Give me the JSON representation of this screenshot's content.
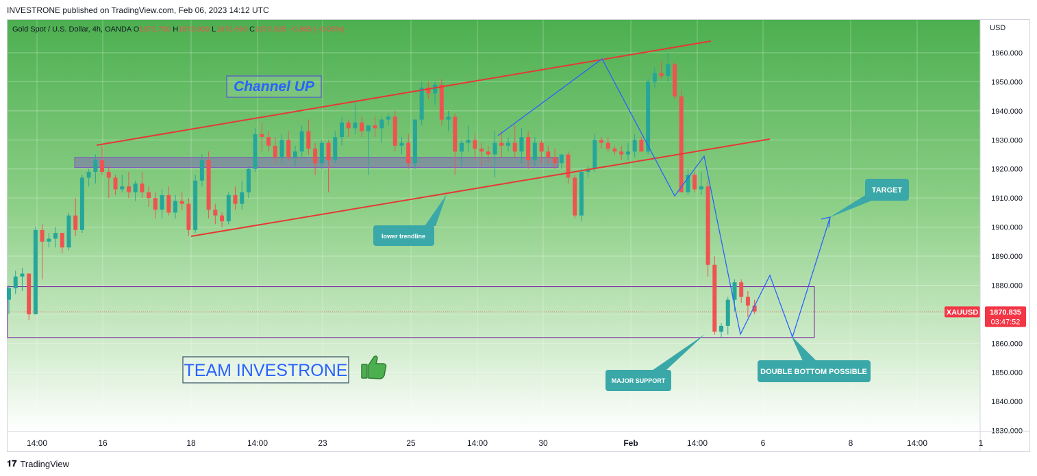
{
  "header": {
    "published": "INVESTRONE published on TradingView.com, Feb 06, 2023 14:12 UTC"
  },
  "legend": {
    "symbol": "Gold Spot / U.S. Dollar, 4h, OANDA",
    "o_label": "O",
    "o_value": "1871.700",
    "h_label": "H",
    "h_value": "1873.900",
    "l_label": "L",
    "l_value": "1870.660",
    "c_label": "C",
    "c_value": "1870.835",
    "change": "−0.865 (−0.05%)"
  },
  "price_axis": {
    "currency": "USD",
    "labels": [
      "1960.000",
      "1950.000",
      "1940.000",
      "1930.000",
      "1920.000",
      "1910.000",
      "1900.000",
      "1890.000",
      "1880.000",
      "1870.000",
      "1860.000",
      "1850.000",
      "1840.000",
      "1830.000"
    ]
  },
  "time_axis": {
    "labels": [
      "14:00",
      "16",
      "18",
      "14:00",
      "23",
      "25",
      "14:00",
      "30",
      "Feb",
      "14:00",
      "6",
      "8",
      "14:00",
      "1"
    ]
  },
  "last_price": {
    "symbol": "XAUUSD",
    "price": "1870.835",
    "countdown": "03:47:52"
  },
  "annotations": {
    "channel": "Channel UP",
    "lower_trendline": "lower trendline",
    "target": "TARGET",
    "major_support": "MAJOR SUPPORT",
    "double_bottom": "DOUBLE BOTTOM POSSIBLE",
    "team": "TEAM INVESTRONE"
  },
  "footer": {
    "brand": "TradingView"
  },
  "colors": {
    "up": "#26a69a",
    "down": "#ef5350",
    "bg_top": "#4caf50",
    "bg_bottom": "#ffffff",
    "channel": "#e53935",
    "path": "#2962ff",
    "callout": "#3aa8a8",
    "box": "#7b1fa2",
    "price_tag": "#f23645"
  },
  "chart_data": {
    "type": "candlestick",
    "title": "Gold Spot / U.S. Dollar, 4h, OANDA",
    "ylabel": "USD",
    "ylim": [
      1828,
      1968
    ],
    "candles": [
      [
        1875,
        1880,
        1870,
        1879
      ],
      [
        1879,
        1885,
        1877,
        1883
      ],
      [
        1883,
        1886,
        1878,
        1884
      ],
      [
        1884,
        1884,
        1868,
        1870
      ],
      [
        1870,
        1900,
        1870,
        1899
      ],
      [
        1899,
        1901,
        1882,
        1895
      ],
      [
        1895,
        1898,
        1893,
        1896
      ],
      [
        1896,
        1900,
        1893,
        1898
      ],
      [
        1898,
        1898,
        1891,
        1893
      ],
      [
        1893,
        1905,
        1892,
        1904
      ],
      [
        1904,
        1910,
        1897,
        1899
      ],
      [
        1899,
        1918,
        1898,
        1917
      ],
      [
        1917,
        1920,
        1914,
        1919
      ],
      [
        1919,
        1925,
        1915,
        1923
      ],
      [
        1923,
        1928,
        1918,
        1919
      ],
      [
        1919,
        1921,
        1910,
        1917
      ],
      [
        1917,
        1918,
        1911,
        1913
      ],
      [
        1913,
        1918,
        1912,
        1914
      ],
      [
        1914,
        1919,
        1910,
        1912
      ],
      [
        1912,
        1916,
        1909,
        1915
      ],
      [
        1915,
        1919,
        1910,
        1912
      ],
      [
        1912,
        1914,
        1907,
        1910
      ],
      [
        1910,
        1912,
        1903,
        1906
      ],
      [
        1906,
        1913,
        1903,
        1911
      ],
      [
        1911,
        1914,
        1904,
        1905
      ],
      [
        1905,
        1911,
        1903,
        1909
      ],
      [
        1909,
        1912,
        1906,
        1908
      ],
      [
        1908,
        1910,
        1897,
        1899
      ],
      [
        1899,
        1918,
        1898,
        1916
      ],
      [
        1916,
        1925,
        1914,
        1923
      ],
      [
        1923,
        1926,
        1903,
        1906
      ],
      [
        1906,
        1908,
        1901,
        1904
      ],
      [
        1904,
        1905,
        1900,
        1902
      ],
      [
        1902,
        1912,
        1901,
        1911
      ],
      [
        1911,
        1914,
        1906,
        1908
      ],
      [
        1908,
        1916,
        1906,
        1912
      ],
      [
        1912,
        1921,
        1910,
        1920
      ],
      [
        1920,
        1934,
        1919,
        1932
      ],
      [
        1932,
        1936,
        1926,
        1931
      ],
      [
        1931,
        1933,
        1926,
        1928
      ],
      [
        1928,
        1931,
        1922,
        1924
      ],
      [
        1924,
        1932,
        1922,
        1930
      ],
      [
        1930,
        1933,
        1923,
        1924
      ],
      [
        1924,
        1928,
        1921,
        1926
      ],
      [
        1926,
        1935,
        1924,
        1933
      ],
      [
        1933,
        1937,
        1925,
        1927
      ],
      [
        1927,
        1929,
        1918,
        1922
      ],
      [
        1922,
        1930,
        1920,
        1929
      ],
      [
        1929,
        1930,
        1912,
        1923
      ],
      [
        1923,
        1933,
        1922,
        1931
      ],
      [
        1931,
        1938,
        1928,
        1936
      ],
      [
        1936,
        1937,
        1931,
        1934
      ],
      [
        1934,
        1943,
        1932,
        1936
      ],
      [
        1936,
        1938,
        1931,
        1933
      ],
      [
        1933,
        1935,
        1918,
        1935
      ],
      [
        1935,
        1938,
        1931,
        1934
      ],
      [
        1934,
        1938,
        1929,
        1937
      ],
      [
        1937,
        1939,
        1935,
        1938
      ],
      [
        1938,
        1940,
        1926,
        1928
      ],
      [
        1928,
        1931,
        1925,
        1929
      ],
      [
        1929,
        1932,
        1920,
        1922
      ],
      [
        1922,
        1937,
        1920,
        1937
      ],
      [
        1937,
        1950,
        1935,
        1948
      ],
      [
        1948,
        1950,
        1944,
        1946
      ],
      [
        1946,
        1950,
        1942,
        1949
      ],
      [
        1949,
        1951,
        1935,
        1937
      ],
      [
        1937,
        1940,
        1933,
        1938
      ],
      [
        1938,
        1939,
        1918,
        1926
      ],
      [
        1926,
        1930,
        1921,
        1929
      ],
      [
        1929,
        1935,
        1926,
        1930
      ],
      [
        1930,
        1932,
        1923,
        1927
      ],
      [
        1927,
        1929,
        1921,
        1926
      ],
      [
        1926,
        1928,
        1922,
        1925
      ],
      [
        1925,
        1933,
        1917,
        1929
      ],
      [
        1929,
        1933,
        1924,
        1928
      ],
      [
        1928,
        1931,
        1926,
        1929
      ],
      [
        1929,
        1935,
        1924,
        1926
      ],
      [
        1926,
        1934,
        1922,
        1931
      ],
      [
        1931,
        1933,
        1920,
        1923
      ],
      [
        1923,
        1931,
        1921,
        1929
      ],
      [
        1929,
        1930,
        1922,
        1926
      ],
      [
        1926,
        1928,
        1922,
        1924
      ],
      [
        1924,
        1927,
        1920,
        1922
      ],
      [
        1922,
        1925,
        1920,
        1925
      ],
      [
        1925,
        1926,
        1915,
        1917
      ],
      [
        1917,
        1918,
        1903,
        1904
      ],
      [
        1904,
        1920,
        1902,
        1919
      ],
      [
        1919,
        1921,
        1917,
        1920
      ],
      [
        1920,
        1932,
        1919,
        1930
      ],
      [
        1930,
        1931,
        1927,
        1929
      ],
      [
        1929,
        1931,
        1926,
        1927
      ],
      [
        1927,
        1928,
        1925,
        1926
      ],
      [
        1926,
        1928,
        1923,
        1925
      ],
      [
        1925,
        1929,
        1923,
        1926
      ],
      [
        1926,
        1932,
        1924,
        1930
      ],
      [
        1930,
        1931,
        1926,
        1926
      ],
      [
        1926,
        1951,
        1925,
        1950
      ],
      [
        1950,
        1955,
        1948,
        1953
      ],
      [
        1953,
        1957,
        1951,
        1952
      ],
      [
        1952,
        1960,
        1950,
        1956
      ],
      [
        1956,
        1957,
        1944,
        1945
      ],
      [
        1945,
        1947,
        1912,
        1912
      ],
      [
        1912,
        1920,
        1911,
        1918
      ],
      [
        1918,
        1919,
        1912,
        1913
      ],
      [
        1913,
        1919,
        1911,
        1914
      ],
      [
        1914,
        1916,
        1883,
        1887
      ],
      [
        1887,
        1890,
        1863,
        1864
      ],
      [
        1864,
        1867,
        1862,
        1866
      ],
      [
        1866,
        1876,
        1863,
        1875
      ],
      [
        1875,
        1882,
        1871,
        1881
      ],
      [
        1881,
        1882,
        1874,
        1876
      ],
      [
        1876,
        1878,
        1869,
        1873
      ],
      [
        1873,
        1875,
        1870,
        1871
      ]
    ]
  }
}
